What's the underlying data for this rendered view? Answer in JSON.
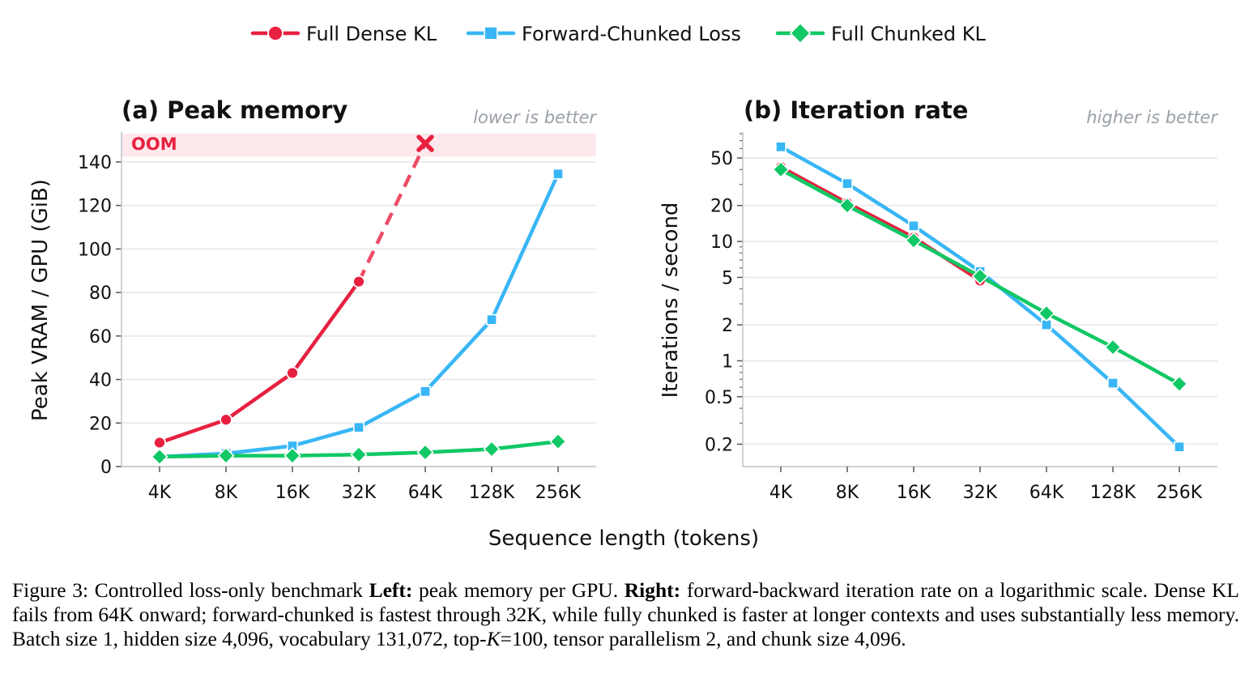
{
  "legend": [
    {
      "name": "Full Dense KL",
      "color": "#e8203f",
      "marker": "circle"
    },
    {
      "name": "Forward-Chunked Loss",
      "color": "#38b6f5",
      "marker": "square"
    },
    {
      "name": "Full Chunked KL",
      "color": "#10c865",
      "marker": "diamond"
    }
  ],
  "xlabel": "Sequence length (tokens)",
  "chart_data": [
    {
      "type": "line",
      "title": "(a) Peak memory",
      "note": "lower is better",
      "ylabel": "Peak VRAM / GPU (GiB)",
      "ylim": [
        0,
        153
      ],
      "yscale": "linear",
      "yticks": [
        0,
        20,
        40,
        60,
        80,
        100,
        120,
        140
      ],
      "categories": [
        "4K",
        "8K",
        "16K",
        "32K",
        "64K",
        "128K",
        "256K"
      ],
      "oom_band": {
        "label": "OOM",
        "from": 142.5,
        "to": 153,
        "color": "#fde8ec"
      },
      "oom_point": {
        "category": "64K",
        "value": 148.5
      },
      "grid": true,
      "series": [
        {
          "name": "Full Dense KL",
          "values": [
            11,
            21.5,
            43,
            85,
            null,
            null,
            null
          ],
          "extrapolated_to_oom": true
        },
        {
          "name": "Forward-Chunked Loss",
          "values": [
            4.5,
            6,
            9.5,
            18,
            34.5,
            67.5,
            134.5
          ]
        },
        {
          "name": "Full Chunked KL",
          "values": [
            4.5,
            5,
            5,
            5.5,
            6.5,
            8,
            11.5
          ]
        }
      ]
    },
    {
      "type": "line",
      "title": "(b) Iteration rate",
      "note": "higher is better",
      "ylabel": "Iterations / second",
      "yscale": "log",
      "ylim": [
        0.13,
        80
      ],
      "yticks": [
        0.2,
        0.5,
        1,
        2,
        5,
        10,
        20,
        50
      ],
      "ytick_labels": [
        "0.2",
        "0.5",
        "1",
        "2",
        "5",
        "10",
        "20",
        "50"
      ],
      "categories": [
        "4K",
        "8K",
        "16K",
        "32K",
        "64K",
        "128K",
        "256K"
      ],
      "grid": true,
      "series": [
        {
          "name": "Full Dense KL",
          "values": [
            42,
            21,
            10.8,
            4.7,
            null,
            null,
            null
          ]
        },
        {
          "name": "Forward-Chunked Loss",
          "values": [
            62,
            30.5,
            13.5,
            5.6,
            2.0,
            0.65,
            0.19
          ]
        },
        {
          "name": "Full Chunked KL",
          "values": [
            40,
            20,
            10.2,
            5.1,
            2.5,
            1.3,
            0.64
          ]
        }
      ]
    }
  ],
  "caption": {
    "fig_label": "Figure 3:",
    "intro": "Controlled loss-only benchmark",
    "left_label": "Left:",
    "left_text": "peak memory per GPU.",
    "right_label": "Right:",
    "right_text": "forward-backward iteration rate on a logarithmic scale. Dense KL fails from 64K onward; forward-chunked is fastest through 32K, while fully chunked is faster at longer contexts and uses substantially less memory. Batch size 1, hidden size 4,096, vocabulary 131,072, top-",
    "k_symbol": "K",
    "after_k": "=100, tensor parallelism 2, and chunk size 4,096."
  }
}
